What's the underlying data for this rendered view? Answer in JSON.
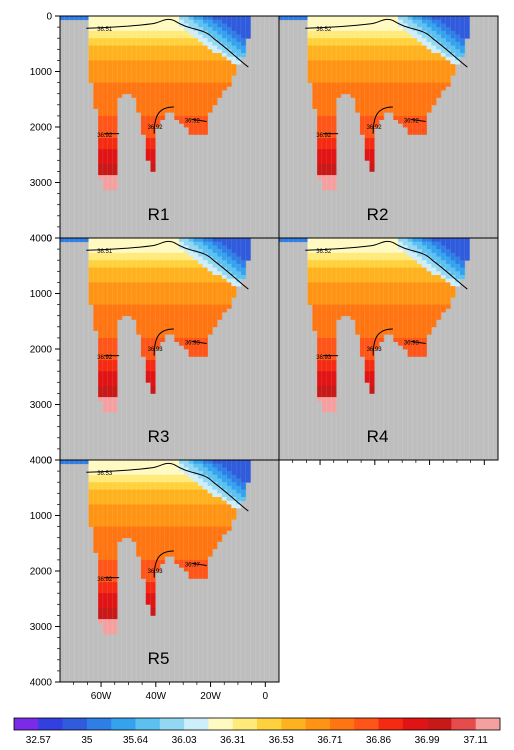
{
  "chart_data": {
    "type": "heatmap",
    "y_ticks": [
      "0",
      "1000",
      "2000",
      "3000",
      "4000"
    ],
    "ylim": [
      0,
      4000
    ],
    "x_ticks": [
      "60W",
      "40W",
      "20W",
      "0"
    ],
    "xlim": [
      -75,
      5
    ],
    "panels": [
      {
        "label": "R1",
        "contour_labels": [
          "36.51",
          "36.92",
          "36.92",
          "36.92"
        ]
      },
      {
        "label": "R2",
        "contour_labels": [
          "36.52",
          "36.92",
          "36.92",
          "36.92"
        ]
      },
      {
        "label": "R3",
        "contour_labels": [
          "36.51",
          "36.92",
          "36.93",
          "36.93"
        ]
      },
      {
        "label": "R4",
        "contour_labels": [
          "36.52",
          "36.93",
          "36.93",
          "36.93"
        ]
      },
      {
        "label": "R5",
        "contour_labels": [
          "36.53",
          "36.92",
          "36.93",
          "36.97"
        ]
      }
    ],
    "colorbar": {
      "tick_labels": [
        "32.57",
        "35",
        "35.64",
        "36.03",
        "36.31",
        "36.53",
        "36.71",
        "36.86",
        "36.99",
        "37.11"
      ],
      "colors": [
        "#7b2be8",
        "#3340e0",
        "#2f5bdc",
        "#2f7ee6",
        "#35a2ee",
        "#5cc0f0",
        "#93d8f2",
        "#cdeefa",
        "#fff9c2",
        "#ffea7a",
        "#ffd13d",
        "#ffb21f",
        "#ff9414",
        "#ff7512",
        "#ff5518",
        "#f52a12",
        "#e01414",
        "#c81818",
        "#e64c4c",
        "#f5a0a0"
      ]
    }
  }
}
